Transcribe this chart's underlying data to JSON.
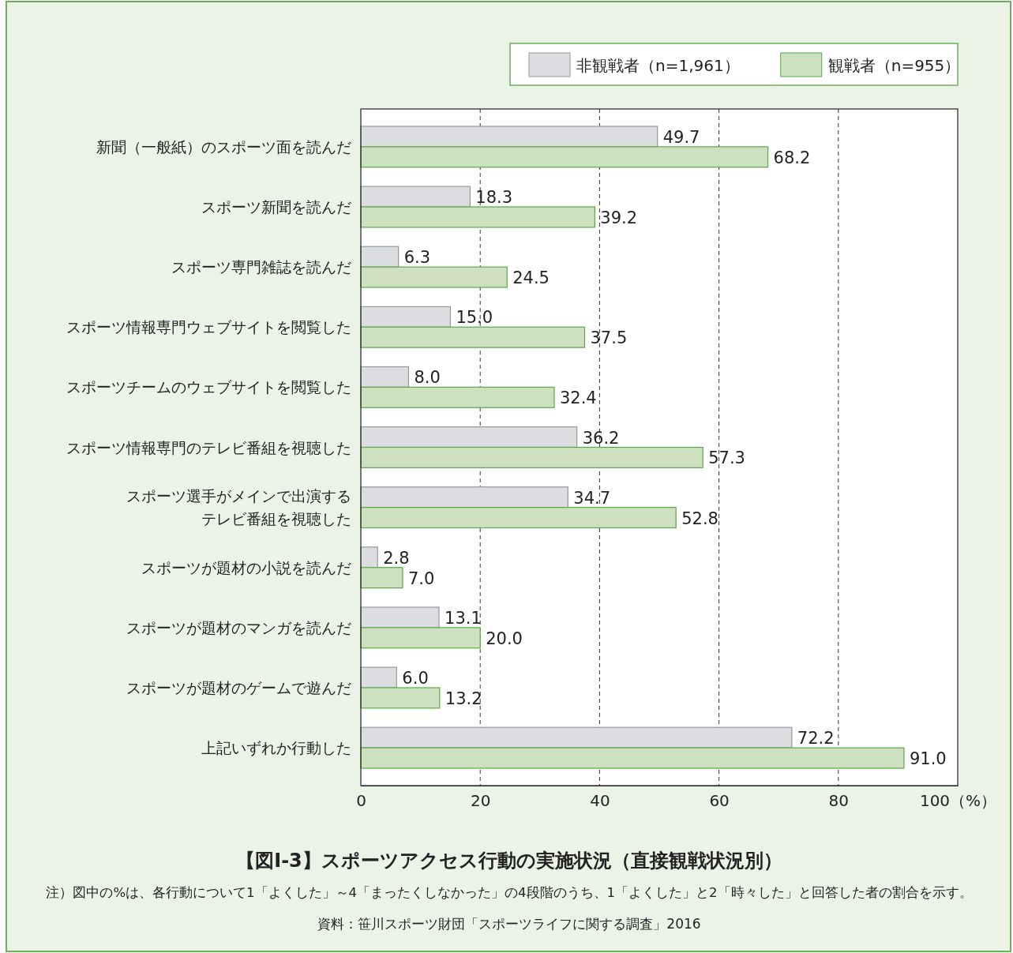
{
  "chart_data": {
    "type": "bar",
    "orientation": "horizontal",
    "title": "【図I-3】スポーツアクセス行動の実施状況（直接観戦状況別）",
    "categories": [
      "新聞（一般紙）のスポーツ面を読んだ",
      "スポーツ新聞を読んだ",
      "スポーツ専門雑誌を読んだ",
      "スポーツ情報専門ウェブサイトを閲覧した",
      "スポーツチームのウェブサイトを閲覧した",
      "スポーツ情報専門のテレビ番組を視聴した",
      "スポーツ選手がメインで出演するテレビ番組を視聴した",
      "スポーツが題材の小説を読んだ",
      "スポーツが題材のマンガを読んだ",
      "スポーツが題材のゲームで遊んだ",
      "上記いずれか行動した"
    ],
    "series": [
      {
        "name": "非観戦者（n=1,961）",
        "color": "#dcdde0",
        "values": [
          49.7,
          18.3,
          6.3,
          15.0,
          8.0,
          36.2,
          34.7,
          2.8,
          13.1,
          6.0,
          72.2
        ],
        "value_labels": [
          "49.7",
          "18.3",
          "6.3",
          "15.0",
          "8.0",
          "36.2",
          "34.7",
          "2.8",
          "13.1",
          "6.0",
          "72.2"
        ]
      },
      {
        "name": "観戦者（n=955）",
        "color": "#cde0c0",
        "values": [
          68.2,
          39.2,
          24.5,
          37.5,
          32.4,
          57.3,
          52.8,
          7.0,
          20.0,
          13.2,
          91.0
        ],
        "value_labels": [
          "68.2",
          "39.2",
          "24.5",
          "37.5",
          "32.4",
          "57.3",
          "52.8",
          "7.0",
          "20.0",
          "13.2",
          "91.0"
        ]
      }
    ],
    "xlim": [
      0,
      100
    ],
    "xticks": [
      0,
      20,
      40,
      60,
      80,
      {
        "value": 100,
        "label": "100（%）"
      }
    ],
    "grid": "x",
    "line_style": "dashed",
    "legend": "top right",
    "annotations": [
      "注）図中の%は、各行動について1「よくした」～4「まったくしなかった」の4段階のうち、1「よくした」と2「時々した」と回答した者の割合を示す。",
      "資料：笹川スポーツ財団「スポーツライフに関する調査」2016"
    ]
  }
}
